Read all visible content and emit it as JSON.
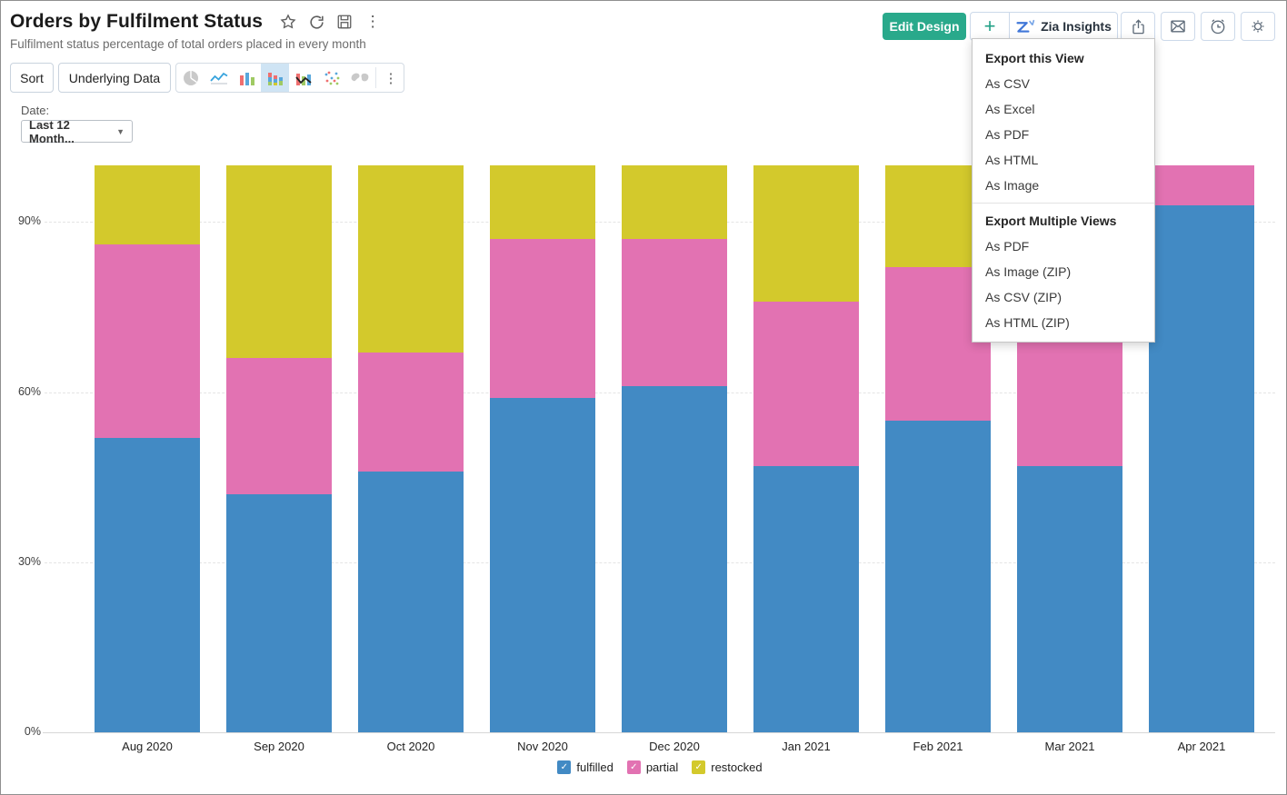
{
  "header": {
    "title": "Orders by Fulfilment Status",
    "subtitle": "Fulfilment status percentage of total orders placed in every month",
    "title_icons": [
      "star-icon",
      "refresh-icon",
      "save-icon",
      "more-vertical-icon"
    ],
    "edit_design_label": "Edit Design",
    "plus_label": "+",
    "zia_insights_label": "Zia Insights",
    "action_icons": [
      "export-icon",
      "email-icon",
      "alarm-icon",
      "gear-icon"
    ]
  },
  "toolbar": {
    "sort_label": "Sort",
    "underlying_data_label": "Underlying Data",
    "chart_type_icons": [
      "pie-chart-icon",
      "line-chart-icon",
      "bar-chart-icon",
      "stacked-bar-chart-icon",
      "combo-chart-icon",
      "scatter-chart-icon",
      "map-chart-icon"
    ],
    "selected_chart_type": "stacked-bar-chart-icon",
    "more_label": "⋮"
  },
  "filter": {
    "label": "Date:",
    "value": "Last 12 Month..."
  },
  "export_menu": {
    "sections": [
      {
        "header": "Export this View",
        "items": [
          "As CSV",
          "As Excel",
          "As PDF",
          "As HTML",
          "As Image"
        ]
      },
      {
        "header": "Export Multiple Views",
        "items": [
          "As PDF",
          "As Image (ZIP)",
          "As CSV (ZIP)",
          "As HTML (ZIP)"
        ]
      }
    ]
  },
  "chart_data": {
    "type": "bar",
    "stacked": true,
    "title": "Orders by Fulfilment Status",
    "xlabel": "",
    "ylabel": "",
    "ylim": [
      0,
      100
    ],
    "y_ticks": [
      "0%",
      "30%",
      "60%",
      "90%"
    ],
    "grid": "horizontal-dashed",
    "legend_position": "bottom",
    "categories": [
      "Aug 2020",
      "Sep 2020",
      "Oct 2020",
      "Nov 2020",
      "Dec 2020",
      "Jan 2021",
      "Feb 2021",
      "Mar 2021",
      "Apr 2021"
    ],
    "series": [
      {
        "name": "fulfilled",
        "color": "#428ac4",
        "values": [
          52,
          42,
          46,
          59,
          61,
          47,
          55,
          47,
          93
        ]
      },
      {
        "name": "partial",
        "color": "#e272b2",
        "values": [
          34,
          24,
          21,
          28,
          26,
          29,
          27,
          35,
          7
        ]
      },
      {
        "name": "restocked",
        "color": "#d3c92c",
        "values": [
          14,
          34,
          33,
          13,
          13,
          24,
          18,
          18,
          0
        ]
      }
    ]
  },
  "colors": {
    "accent_teal": "#29a98b",
    "zia_blue": "#4077d8",
    "selected_icon_bg": "#cfe4f4",
    "bar_blue": "#428ac4",
    "bar_pink": "#e272b2",
    "bar_yellow": "#d3c92c"
  }
}
